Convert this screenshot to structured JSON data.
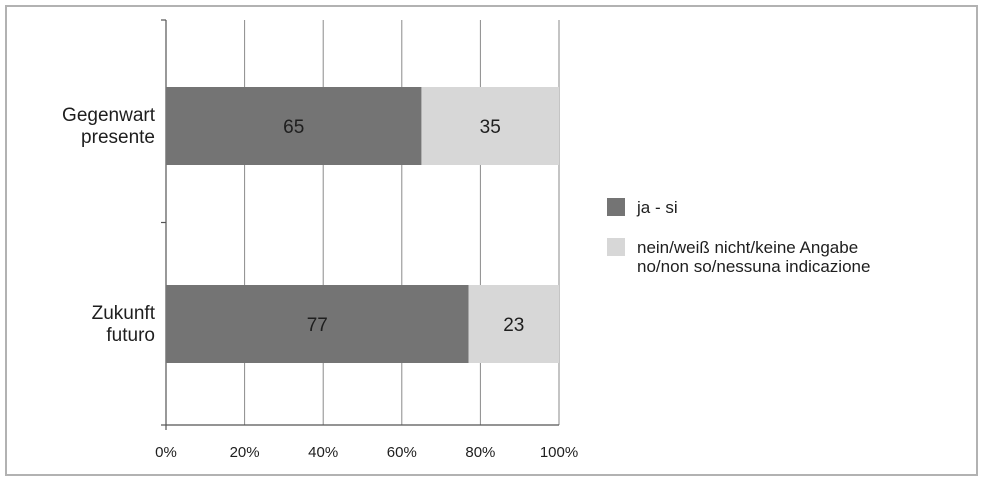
{
  "chart_data": {
    "type": "bar",
    "orientation": "horizontal",
    "stacked": true,
    "percent": true,
    "categories": [
      [
        "Gegenwart",
        "presente"
      ],
      [
        "Zukunft",
        "futuro"
      ]
    ],
    "series": [
      {
        "name": [
          "ja - si"
        ],
        "values": [
          65,
          77
        ],
        "color": "#747474"
      },
      {
        "name": [
          "nein/weiß nicht/keine Angabe",
          "no/non so/nessuna indicazione"
        ],
        "values": [
          35,
          23
        ],
        "color": "#d7d7d7"
      }
    ],
    "xticks": [
      "0%",
      "20%",
      "40%",
      "60%",
      "80%",
      "100%"
    ],
    "xlim": [
      0,
      100
    ],
    "grid": true,
    "legend": "right",
    "title": "",
    "xlabel": "",
    "ylabel": ""
  }
}
